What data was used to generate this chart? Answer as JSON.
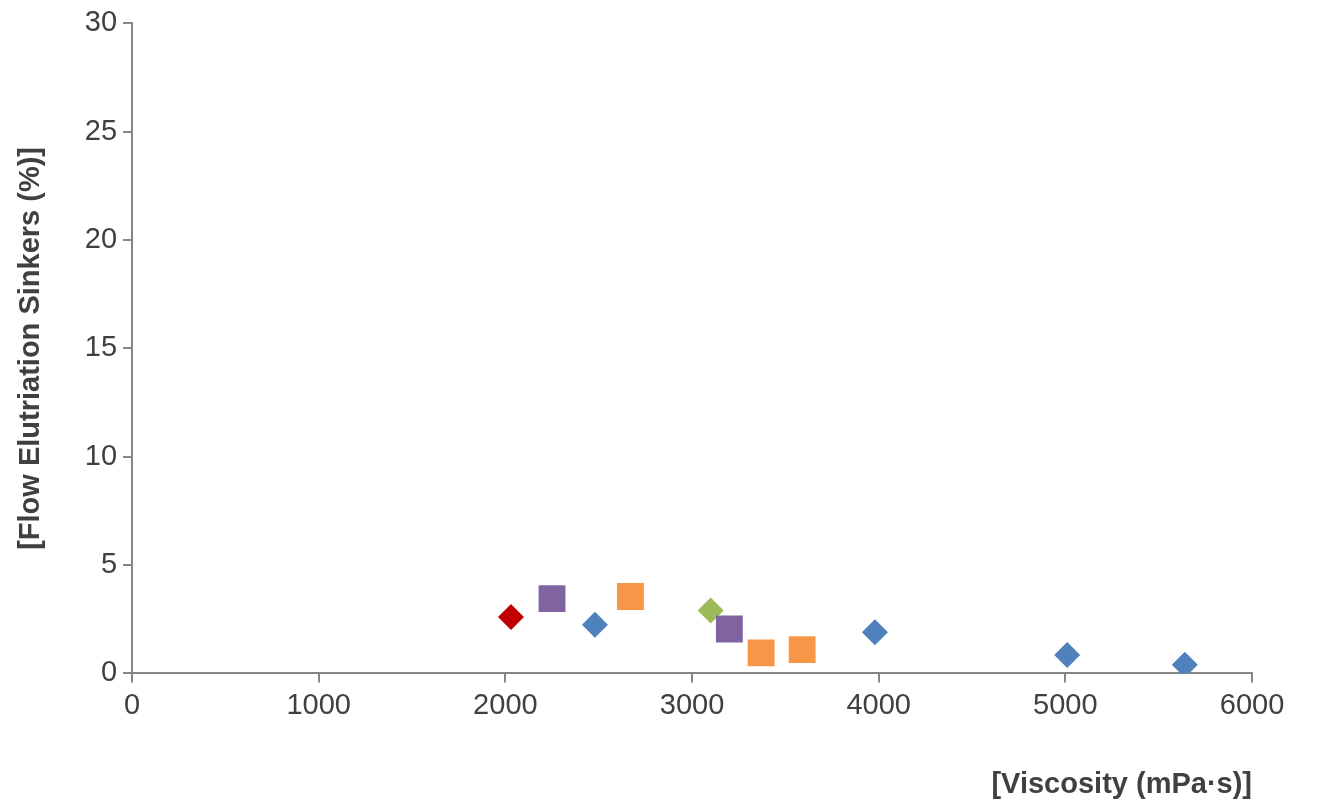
{
  "chart_data": {
    "type": "scatter",
    "xlabel": "[Viscosity (mPa·s)]",
    "ylabel": "[Flow Elutriation Sinkers (%)]",
    "xlim": [
      0,
      6000
    ],
    "xticks": [
      0,
      1000,
      2000,
      3000,
      4000,
      5000,
      6000
    ],
    "ylim": [
      0,
      30
    ],
    "yticks": [
      0,
      5,
      10,
      15,
      20,
      25,
      30
    ],
    "grid": false,
    "legend": false,
    "series": [
      {
        "color": "#c00000",
        "marker": "diamond",
        "x": [
          2030
        ],
        "values": [
          2.6
        ]
      },
      {
        "color": "#8064a2",
        "marker": "square",
        "x": [
          2250,
          3200
        ],
        "values": [
          3.45,
          2.05
        ]
      },
      {
        "color": "#4f81bd",
        "marker": "diamond",
        "x": [
          2480,
          3980,
          5010,
          5640
        ],
        "values": [
          2.25,
          1.9,
          0.85,
          0.4
        ]
      },
      {
        "color": "#f79646",
        "marker": "square",
        "x": [
          2670,
          3370,
          3590
        ],
        "values": [
          3.55,
          0.95,
          1.1
        ]
      },
      {
        "color": "#9bbb59",
        "marker": "diamond",
        "x": [
          3100
        ],
        "values": [
          2.9
        ]
      }
    ]
  }
}
